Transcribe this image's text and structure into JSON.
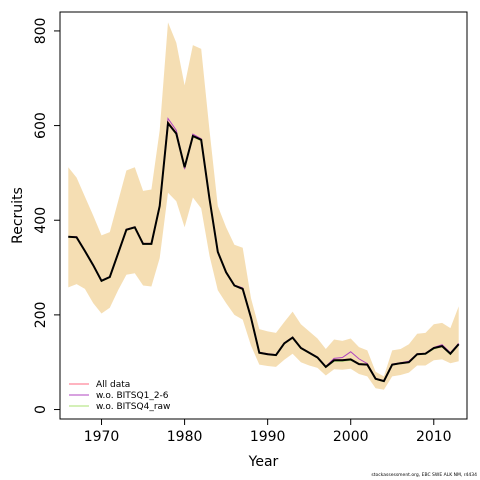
{
  "chart_data": {
    "type": "line",
    "xlabel": "Year",
    "ylabel": "Recruits",
    "xlim": [
      1965,
      2014
    ],
    "ylim": [
      -20,
      840
    ],
    "xticks": [
      1970,
      1980,
      1990,
      2000,
      2010
    ],
    "yticks": [
      0,
      200,
      400,
      600,
      800
    ],
    "grid": false,
    "legend_position": "bottom-left",
    "colors": {
      "band": "#f5deb3",
      "main": "#000000",
      "all_data": "#ff6a80",
      "wo_q1": "#b044c0",
      "wo_q4": "#a8e070"
    },
    "x": [
      1966,
      1967,
      1968,
      1969,
      1970,
      1971,
      1972,
      1973,
      1974,
      1975,
      1976,
      1977,
      1978,
      1979,
      1980,
      1981,
      1982,
      1983,
      1984,
      1985,
      1986,
      1987,
      1988,
      1989,
      1990,
      1991,
      1992,
      1993,
      1994,
      1995,
      1996,
      1997,
      1998,
      1999,
      2000,
      2001,
      2002,
      2003,
      2004,
      2005,
      2006,
      2007,
      2008,
      2009,
      2010,
      2011,
      2012,
      2013
    ],
    "band_upper": [
      512,
      490,
      450,
      410,
      368,
      375,
      440,
      505,
      512,
      462,
      465,
      590,
      818,
      775,
      685,
      770,
      762,
      590,
      430,
      385,
      348,
      342,
      235,
      170,
      165,
      162,
      185,
      207,
      180,
      165,
      150,
      128,
      148,
      145,
      150,
      132,
      125,
      80,
      70,
      125,
      128,
      138,
      160,
      162,
      180,
      183,
      172,
      218
    ],
    "band_lower": [
      258,
      265,
      255,
      225,
      203,
      215,
      252,
      285,
      288,
      262,
      260,
      320,
      458,
      440,
      385,
      448,
      425,
      325,
      252,
      225,
      200,
      190,
      135,
      95,
      92,
      90,
      105,
      118,
      100,
      93,
      88,
      72,
      85,
      84,
      86,
      75,
      70,
      45,
      42,
      70,
      73,
      78,
      93,
      93,
      104,
      106,
      98,
      102
    ],
    "series": [
      {
        "name": "All data",
        "values": [
          365,
          365,
          335,
          305,
          272,
          280,
          330,
          380,
          385,
          350,
          350,
          430,
          608,
          585,
          512,
          578,
          570,
          445,
          333,
          290,
          262,
          255,
          195,
          120,
          118,
          115,
          140,
          152,
          130,
          120,
          110,
          90,
          105,
          105,
          107,
          97,
          95,
          65,
          60,
          95,
          98,
          100,
          117,
          118,
          130,
          135,
          118,
          138
        ]
      },
      {
        "name": "w.o. BITSQ1_2-6",
        "values": [
          365,
          365,
          336,
          306,
          273,
          281,
          331,
          381,
          386,
          351,
          351,
          431,
          615,
          590,
          508,
          582,
          572,
          447,
          334,
          291,
          263,
          257,
          196,
          121,
          118,
          116,
          141,
          153,
          131,
          121,
          111,
          91,
          108,
          110,
          122,
          107,
          97,
          66,
          61,
          96,
          99,
          102,
          118,
          119,
          131,
          137,
          120,
          140
        ]
      },
      {
        "name": "w.o. BITSQ4_raw",
        "values": [
          364,
          364,
          334,
          304,
          271,
          279,
          329,
          379,
          384,
          349,
          349,
          429,
          605,
          582,
          514,
          576,
          568,
          444,
          332,
          289,
          261,
          254,
          193,
          119,
          117,
          114,
          139,
          151,
          129,
          119,
          109,
          89,
          102,
          102,
          104,
          96,
          94,
          64,
          59,
          94,
          97,
          99,
          116,
          117,
          128,
          133,
          116,
          137
        ]
      }
    ],
    "main_line": [
      365,
      364,
      335,
      305,
      272,
      280,
      330,
      380,
      385,
      350,
      350,
      430,
      605,
      583,
      512,
      578,
      570,
      445,
      333,
      290,
      262,
      255,
      194,
      120,
      117,
      115,
      140,
      152,
      130,
      120,
      110,
      90,
      104,
      104,
      106,
      96,
      95,
      65,
      60,
      95,
      98,
      100,
      117,
      118,
      130,
      134,
      118,
      138
    ]
  },
  "footnote": "stockassessment.org, EBC SWE ALK NM, r4434"
}
